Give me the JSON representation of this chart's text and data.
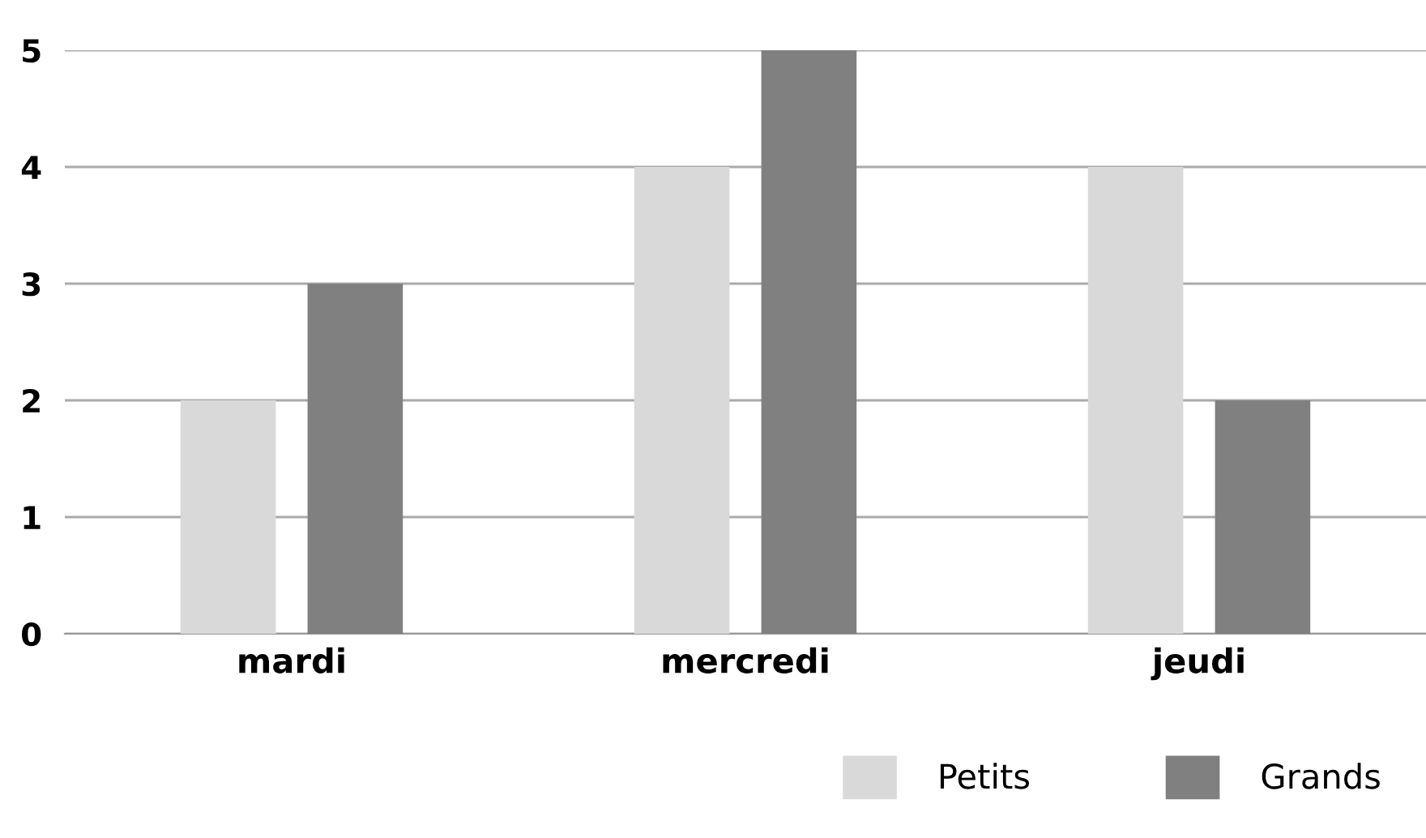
{
  "chart_data": {
    "type": "bar",
    "categories": [
      "mardi",
      "mercredi",
      "jeudi"
    ],
    "series": [
      {
        "name": "Petits",
        "color": "#d9d9d9",
        "values": [
          2,
          4,
          4
        ]
      },
      {
        "name": "Grands",
        "color": "#808080",
        "values": [
          3,
          5,
          2
        ]
      }
    ],
    "ylim": [
      0,
      5
    ],
    "yticks": [
      0,
      1,
      2,
      3,
      4,
      5
    ],
    "grid": "y",
    "legend": "bottom right"
  }
}
